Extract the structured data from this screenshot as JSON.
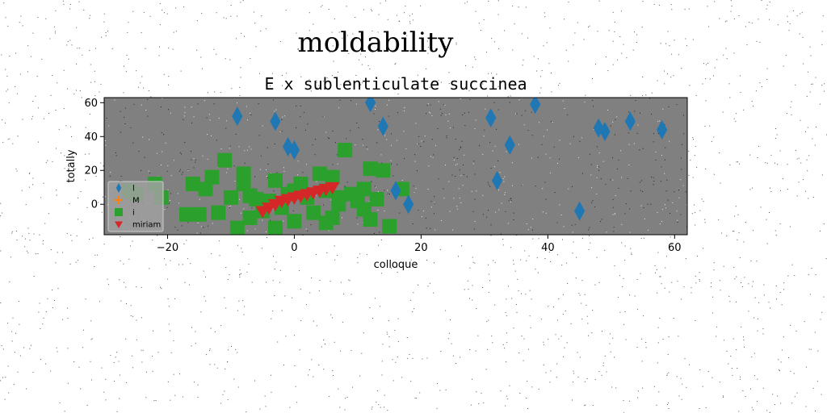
{
  "chart_data": {
    "type": "scatter",
    "suptitle": "moldability",
    "title": "E x sublenticulate succinea",
    "xlabel": "colloque",
    "ylabel": "totally",
    "xlim": [
      -30,
      62
    ],
    "ylim": [
      -18,
      63
    ],
    "xticks": [
      -20,
      0,
      20,
      40,
      60
    ],
    "yticks": [
      0,
      20,
      40,
      60
    ],
    "grid": false,
    "legend_position": "lower-left",
    "background_color": "#808080",
    "series": [
      {
        "name": "l",
        "marker": "diamond",
        "color": "#1f77b4",
        "points": [
          [
            -9,
            52
          ],
          [
            -3,
            49
          ],
          [
            -1,
            34
          ],
          [
            0,
            32
          ],
          [
            12,
            60
          ],
          [
            14,
            46
          ],
          [
            16,
            8
          ],
          [
            18,
            0
          ],
          [
            31,
            51
          ],
          [
            32,
            14
          ],
          [
            34,
            35
          ],
          [
            38,
            59
          ],
          [
            45,
            -4
          ],
          [
            48,
            45
          ],
          [
            49,
            43
          ],
          [
            53,
            49
          ],
          [
            58,
            44
          ]
        ]
      },
      {
        "name": "M",
        "marker": "plus",
        "color": "#ff7f0e",
        "points": []
      },
      {
        "name": "i",
        "marker": "square",
        "color": "#2ca02c",
        "points": [
          [
            -26,
            8
          ],
          [
            -25,
            6
          ],
          [
            -22,
            12
          ],
          [
            -21,
            4
          ],
          [
            -17,
            -6
          ],
          [
            -16,
            12
          ],
          [
            -15,
            -6
          ],
          [
            -14,
            9
          ],
          [
            -13,
            16
          ],
          [
            -12,
            -5
          ],
          [
            -11,
            26
          ],
          [
            -10,
            4
          ],
          [
            -9,
            -14
          ],
          [
            -8,
            18
          ],
          [
            -8,
            12
          ],
          [
            -7,
            5
          ],
          [
            -7,
            -8
          ],
          [
            -6,
            3
          ],
          [
            -5,
            -4
          ],
          [
            -4,
            2
          ],
          [
            -3,
            14
          ],
          [
            -3,
            -14
          ],
          [
            -2,
            -2
          ],
          [
            -1,
            6
          ],
          [
            0,
            8
          ],
          [
            0,
            -10
          ],
          [
            1,
            12
          ],
          [
            2,
            4
          ],
          [
            3,
            -5
          ],
          [
            4,
            18
          ],
          [
            5,
            8
          ],
          [
            5,
            -11
          ],
          [
            6,
            16
          ],
          [
            6,
            -8
          ],
          [
            7,
            4
          ],
          [
            7,
            0
          ],
          [
            8,
            32
          ],
          [
            9,
            6
          ],
          [
            10,
            2
          ],
          [
            11,
            -3
          ],
          [
            11,
            9
          ],
          [
            12,
            21
          ],
          [
            12,
            -9
          ],
          [
            13,
            3
          ],
          [
            14,
            20
          ],
          [
            15,
            -13
          ],
          [
            17,
            9
          ]
        ]
      },
      {
        "name": "miriam",
        "marker": "triangle-down",
        "color": "#d62728",
        "points": [
          [
            -5,
            -4
          ],
          [
            -4,
            -2
          ],
          [
            -3,
            0
          ],
          [
            -2,
            2
          ],
          [
            -1,
            3
          ],
          [
            0,
            4
          ],
          [
            1,
            5
          ],
          [
            2,
            6
          ],
          [
            3,
            7
          ],
          [
            4,
            8
          ],
          [
            5,
            9
          ],
          [
            6,
            10
          ]
        ]
      }
    ]
  }
}
